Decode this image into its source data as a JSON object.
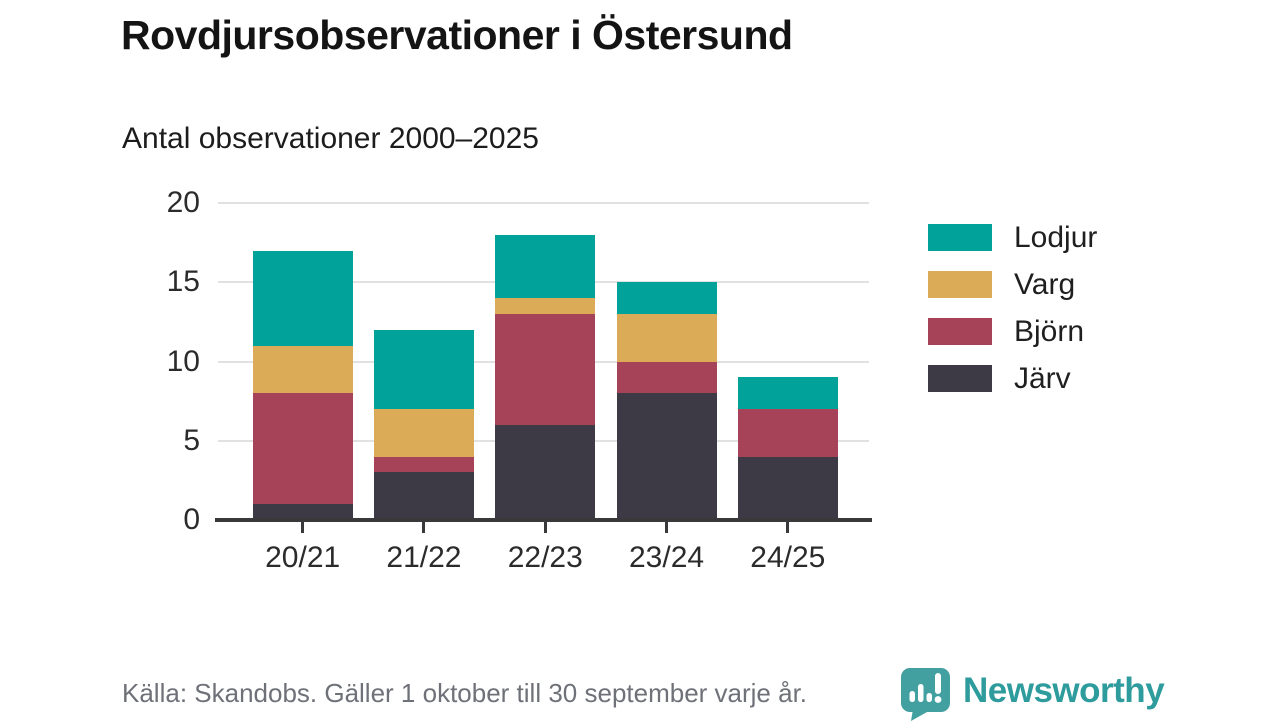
{
  "header": {
    "title": "Rovdjursobservationer i Östersund",
    "subtitle": "Antal observationer 2000–2025"
  },
  "chart_data": {
    "type": "bar",
    "stacked": true,
    "categories": [
      "20/21",
      "21/22",
      "22/23",
      "23/24",
      "24/25"
    ],
    "series": [
      {
        "name": "Järv",
        "color": "#3d3a46",
        "values": [
          1,
          3,
          6,
          8,
          4
        ]
      },
      {
        "name": "Björn",
        "color": "#a64359",
        "values": [
          7,
          1,
          7,
          2,
          3
        ]
      },
      {
        "name": "Varg",
        "color": "#dcab58",
        "values": [
          3,
          3,
          1,
          3,
          0
        ]
      },
      {
        "name": "Lodjur",
        "color": "#00a29a",
        "values": [
          6,
          5,
          4,
          2,
          2
        ]
      }
    ],
    "y_ticks": [
      0,
      5,
      10,
      15,
      20
    ],
    "ylim": [
      0,
      20
    ],
    "grid": "horizontal",
    "legend_position": "right",
    "legend_order": [
      "Lodjur",
      "Varg",
      "Björn",
      "Järv"
    ],
    "colors": {
      "gridline": "#e1e1e1",
      "axis": "#39393b",
      "tick_text": "#2b2b2b"
    }
  },
  "footer": {
    "source": "Källa: Skandobs. Gäller 1 oktober till 30 september varje år."
  },
  "brand": {
    "name": "Newsworthy",
    "icon": "bar-chart-speech-bubble",
    "icon_color": "#43a0a1",
    "text_color": "#2e9b9c"
  }
}
